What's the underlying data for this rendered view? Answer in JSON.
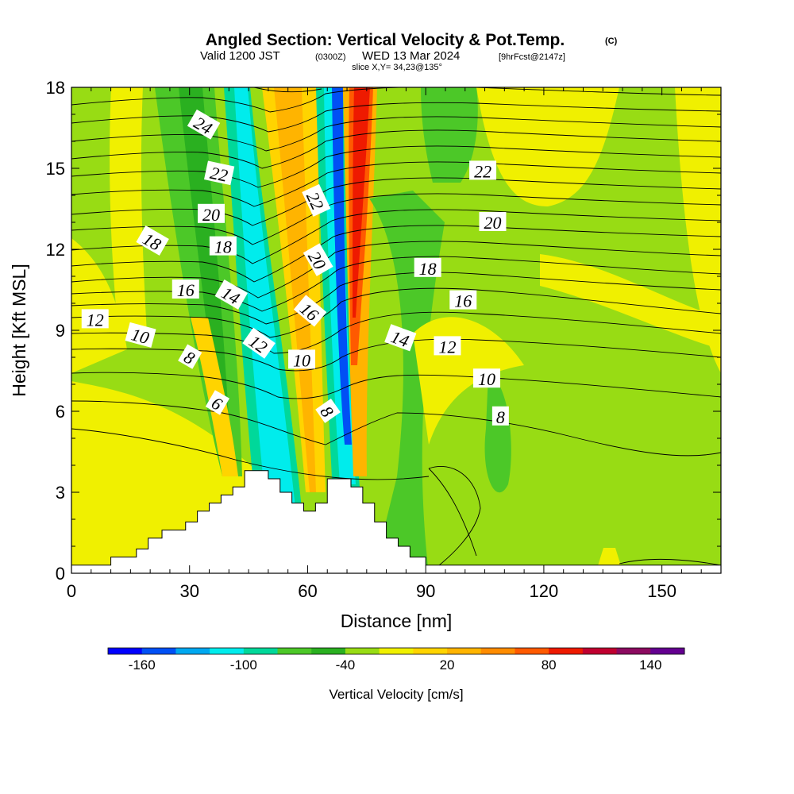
{
  "chart_data": {
    "type": "heatmap",
    "title": "Angled Section: Vertical Velocity & Pot.Temp.",
    "title_suffix": "(C)",
    "subtitle_parts": [
      "Valid 1200 JST",
      "(0300Z)",
      "WED 13 Mar 2024",
      "[9hrFcst@2147z]"
    ],
    "slice_label": "slice X,Y= 34,23@135°",
    "xlabel": "Distance [nm]",
    "ylabel": "Height [Kft MSL]",
    "xlim": [
      0,
      165
    ],
    "ylim": [
      0,
      18
    ],
    "x_ticks": [
      0,
      30,
      60,
      90,
      120,
      150
    ],
    "y_ticks": [
      0,
      3,
      6,
      9,
      12,
      15,
      18
    ],
    "grid": false,
    "colorbar": {
      "label": "Vertical Velocity [cm/s]",
      "ticks": [
        -160,
        -100,
        -40,
        20,
        80,
        140
      ],
      "colors": [
        "#0000ff",
        "#0050f5",
        "#00a8f0",
        "#00ecec",
        "#00d89a",
        "#4cc828",
        "#2ab020",
        "#98dc14",
        "#f0f000",
        "#ffd400",
        "#ffb400",
        "#ff8c00",
        "#ff5a00",
        "#ee1a00",
        "#c00030",
        "#8c0a60",
        "#640090"
      ]
    },
    "theta_contour_labels": [
      {
        "text": "24",
        "x": 33.5,
        "y": 16.6,
        "angle": 30
      },
      {
        "text": "22",
        "x": 37.5,
        "y": 14.8,
        "angle": 12
      },
      {
        "text": "20",
        "x": 35.5,
        "y": 13.3,
        "angle": 0
      },
      {
        "text": "18",
        "x": 20.5,
        "y": 12.3,
        "angle": 30
      },
      {
        "text": "18",
        "x": 38.5,
        "y": 12.1,
        "angle": 0
      },
      {
        "text": "16",
        "x": 29.0,
        "y": 10.5,
        "angle": 0
      },
      {
        "text": "14",
        "x": 40.5,
        "y": 10.3,
        "angle": 30
      },
      {
        "text": "12",
        "x": 6.0,
        "y": 9.4,
        "angle": 0
      },
      {
        "text": "10",
        "x": 17.5,
        "y": 8.8,
        "angle": 15
      },
      {
        "text": "8",
        "x": 30.0,
        "y": 8.0,
        "angle": 30
      },
      {
        "text": "12",
        "x": 47.5,
        "y": 8.5,
        "angle": 35
      },
      {
        "text": "10",
        "x": 58.5,
        "y": 7.9,
        "angle": 0
      },
      {
        "text": "16",
        "x": 60.5,
        "y": 9.7,
        "angle": 40
      },
      {
        "text": "22",
        "x": 62.0,
        "y": 13.8,
        "angle": 65
      },
      {
        "text": "20",
        "x": 62.5,
        "y": 11.6,
        "angle": 60
      },
      {
        "text": "8",
        "x": 65.0,
        "y": 6.0,
        "angle": 55
      },
      {
        "text": "6",
        "x": 37.0,
        "y": 6.3,
        "angle": 30
      },
      {
        "text": "18",
        "x": 90.5,
        "y": 11.3,
        "angle": 0
      },
      {
        "text": "16",
        "x": 99.5,
        "y": 10.1,
        "angle": 0
      },
      {
        "text": "14",
        "x": 83.5,
        "y": 8.7,
        "angle": 20
      },
      {
        "text": "12",
        "x": 95.5,
        "y": 8.4,
        "angle": 0
      },
      {
        "text": "10",
        "x": 105.5,
        "y": 7.2,
        "angle": 0
      },
      {
        "text": "8",
        "x": 109.0,
        "y": 5.8,
        "angle": 0
      },
      {
        "text": "22",
        "x": 104.5,
        "y": 14.9,
        "angle": 0
      },
      {
        "text": "20",
        "x": 107.0,
        "y": 13.0,
        "angle": 0
      }
    ],
    "terrain_kft": [
      [
        0,
        0.3
      ],
      [
        10,
        0.6
      ],
      [
        16.5,
        0.9
      ],
      [
        19.5,
        1.3
      ],
      [
        23,
        1.6
      ],
      [
        29,
        1.9
      ],
      [
        32,
        2.3
      ],
      [
        35,
        2.6
      ],
      [
        38,
        2.9
      ],
      [
        41,
        3.2
      ],
      [
        44,
        3.8
      ],
      [
        50,
        3.5
      ],
      [
        53,
        3.0
      ],
      [
        56,
        2.6
      ],
      [
        59,
        2.3
      ],
      [
        62,
        2.6
      ],
      [
        65,
        3.5
      ],
      [
        71,
        3.2
      ],
      [
        74,
        2.6
      ],
      [
        77,
        1.9
      ],
      [
        80,
        1.3
      ],
      [
        83,
        1.0
      ],
      [
        86,
        0.6
      ],
      [
        90,
        0.3
      ],
      [
        165,
        0.3
      ]
    ]
  }
}
